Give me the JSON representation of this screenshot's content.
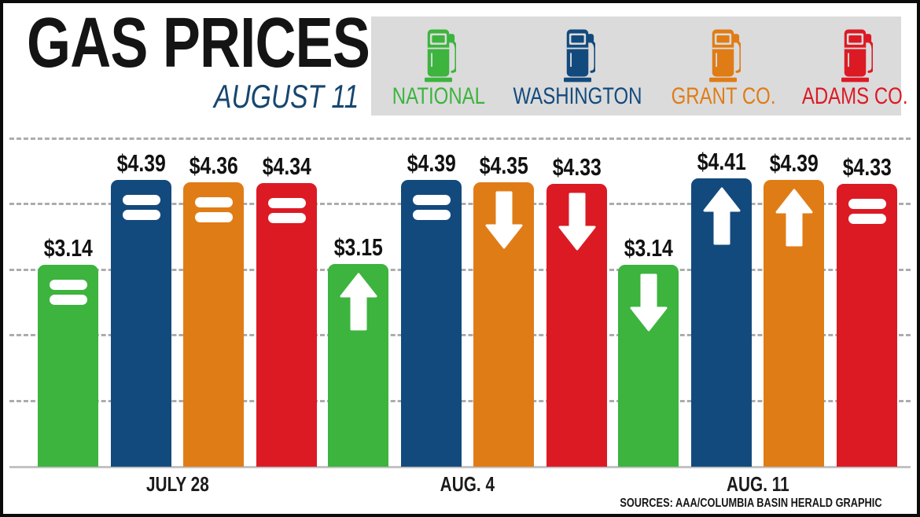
{
  "header": {
    "title": "GAS PRICES",
    "subtitle": "AUGUST 11"
  },
  "footer": {
    "sources": "SOURCES: AAA/COLUMBIA BASIN HERALD GRAPHIC"
  },
  "style": {
    "title_color": "#141414",
    "subtitle_color": "#17466f",
    "legend_bg": "#dbdbdb",
    "grid_color": "#acacac",
    "baseline_color": "#c3c3c3",
    "symbol_color": "#ffffff"
  },
  "chart_data": {
    "type": "bar",
    "title": "GAS PRICES",
    "subtitle": "AUGUST 11",
    "unit": "USD per gallon",
    "value_prefix": "$",
    "categories": [
      "JULY 28",
      "AUG. 4",
      "AUG. 11"
    ],
    "series": [
      {
        "name": "NATIONAL",
        "color": "#3cb43e",
        "values": [
          3.14,
          3.15,
          3.14
        ],
        "trend": [
          "same",
          "up",
          "down"
        ]
      },
      {
        "name": "WASHINGTON",
        "color": "#134a7d",
        "values": [
          4.39,
          4.39,
          4.41
        ],
        "trend": [
          "same",
          "same",
          "up"
        ]
      },
      {
        "name": "GRANT CO.",
        "color": "#e07c16",
        "values": [
          4.36,
          4.35,
          4.39
        ],
        "trend": [
          "same",
          "down",
          "up"
        ]
      },
      {
        "name": "ADAMS CO.",
        "color": "#dc1a24",
        "values": [
          4.34,
          4.33,
          4.33
        ],
        "trend": [
          "same",
          "down",
          "same"
        ]
      }
    ],
    "ylim": [
      0,
      5
    ],
    "grid": "dashed horizontal lines",
    "legend_position": "top-right",
    "sources": "SOURCES: AAA/COLUMBIA BASIN HERALD GRAPHIC"
  }
}
